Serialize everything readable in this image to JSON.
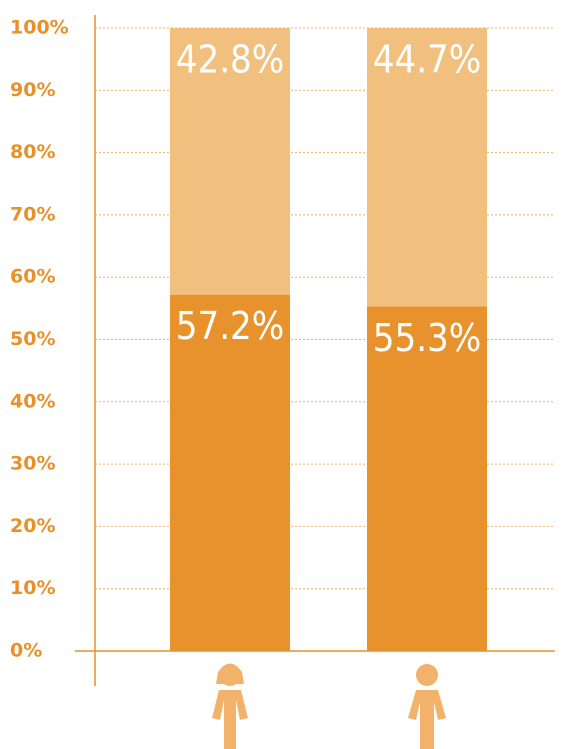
{
  "chart_data": {
    "type": "stacked_bar",
    "categories": [
      null,
      null
    ],
    "series": [
      {
        "color": "#e8922e",
        "values": [
          57.2,
          55.3
        ],
        "value_labels": [
          "57.2%",
          "55.3%"
        ]
      },
      {
        "color": "#f2c07e",
        "values": [
          42.8,
          44.7
        ],
        "value_labels": [
          "42.8%",
          "44.7%"
        ]
      }
    ],
    "ylim": [
      0,
      100
    ],
    "yticks": [
      {
        "value": 0,
        "label": "0%"
      },
      {
        "value": 10,
        "label": "10%"
      },
      {
        "value": 20,
        "label": "20%"
      },
      {
        "value": 30,
        "label": "30%"
      },
      {
        "value": 40,
        "label": "40%"
      },
      {
        "value": 50,
        "label": "50%"
      },
      {
        "value": 60,
        "label": "60%"
      },
      {
        "value": 70,
        "label": "70%"
      },
      {
        "value": 80,
        "label": "80%"
      },
      {
        "value": 90,
        "label": "90%"
      },
      {
        "value": 100,
        "label": "100%"
      }
    ],
    "grid": true
  }
}
